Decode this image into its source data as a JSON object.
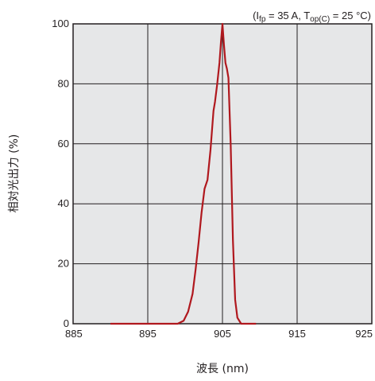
{
  "chart_data": {
    "type": "line",
    "xlabel": "波長 (nm)",
    "ylabel": "相対光出力 (%)",
    "xlim": [
      885,
      925
    ],
    "ylim": [
      0,
      100
    ],
    "xticks": [
      "885",
      "895",
      "905",
      "915",
      "925"
    ],
    "yticks": [
      "0",
      "20",
      "40",
      "60",
      "80",
      "100"
    ],
    "grid": true,
    "conditions": {
      "open": "(I",
      "sub1": "fp",
      "mid": " = 35 A, T",
      "sub2": "op(C)",
      "close": " = 25 °C)"
    },
    "series": [
      {
        "color": "#b0181e",
        "x": [
          890,
          899,
          899.8,
          900.4,
          901.0,
          901.4,
          901.8,
          902.2,
          902.6,
          903.0,
          903.4,
          903.8,
          904.0,
          904.3,
          904.6,
          904.8,
          905.0,
          905.2,
          905.4,
          905.6,
          905.8,
          906.1,
          906.4,
          906.7,
          907.0,
          907.5,
          909.5
        ],
        "y": [
          0,
          0,
          1,
          4,
          10,
          18,
          27,
          37,
          45,
          48,
          58,
          71,
          74,
          80,
          87,
          94,
          100,
          93,
          87,
          85,
          82,
          60,
          28,
          8,
          2,
          0,
          0
        ]
      }
    ]
  }
}
